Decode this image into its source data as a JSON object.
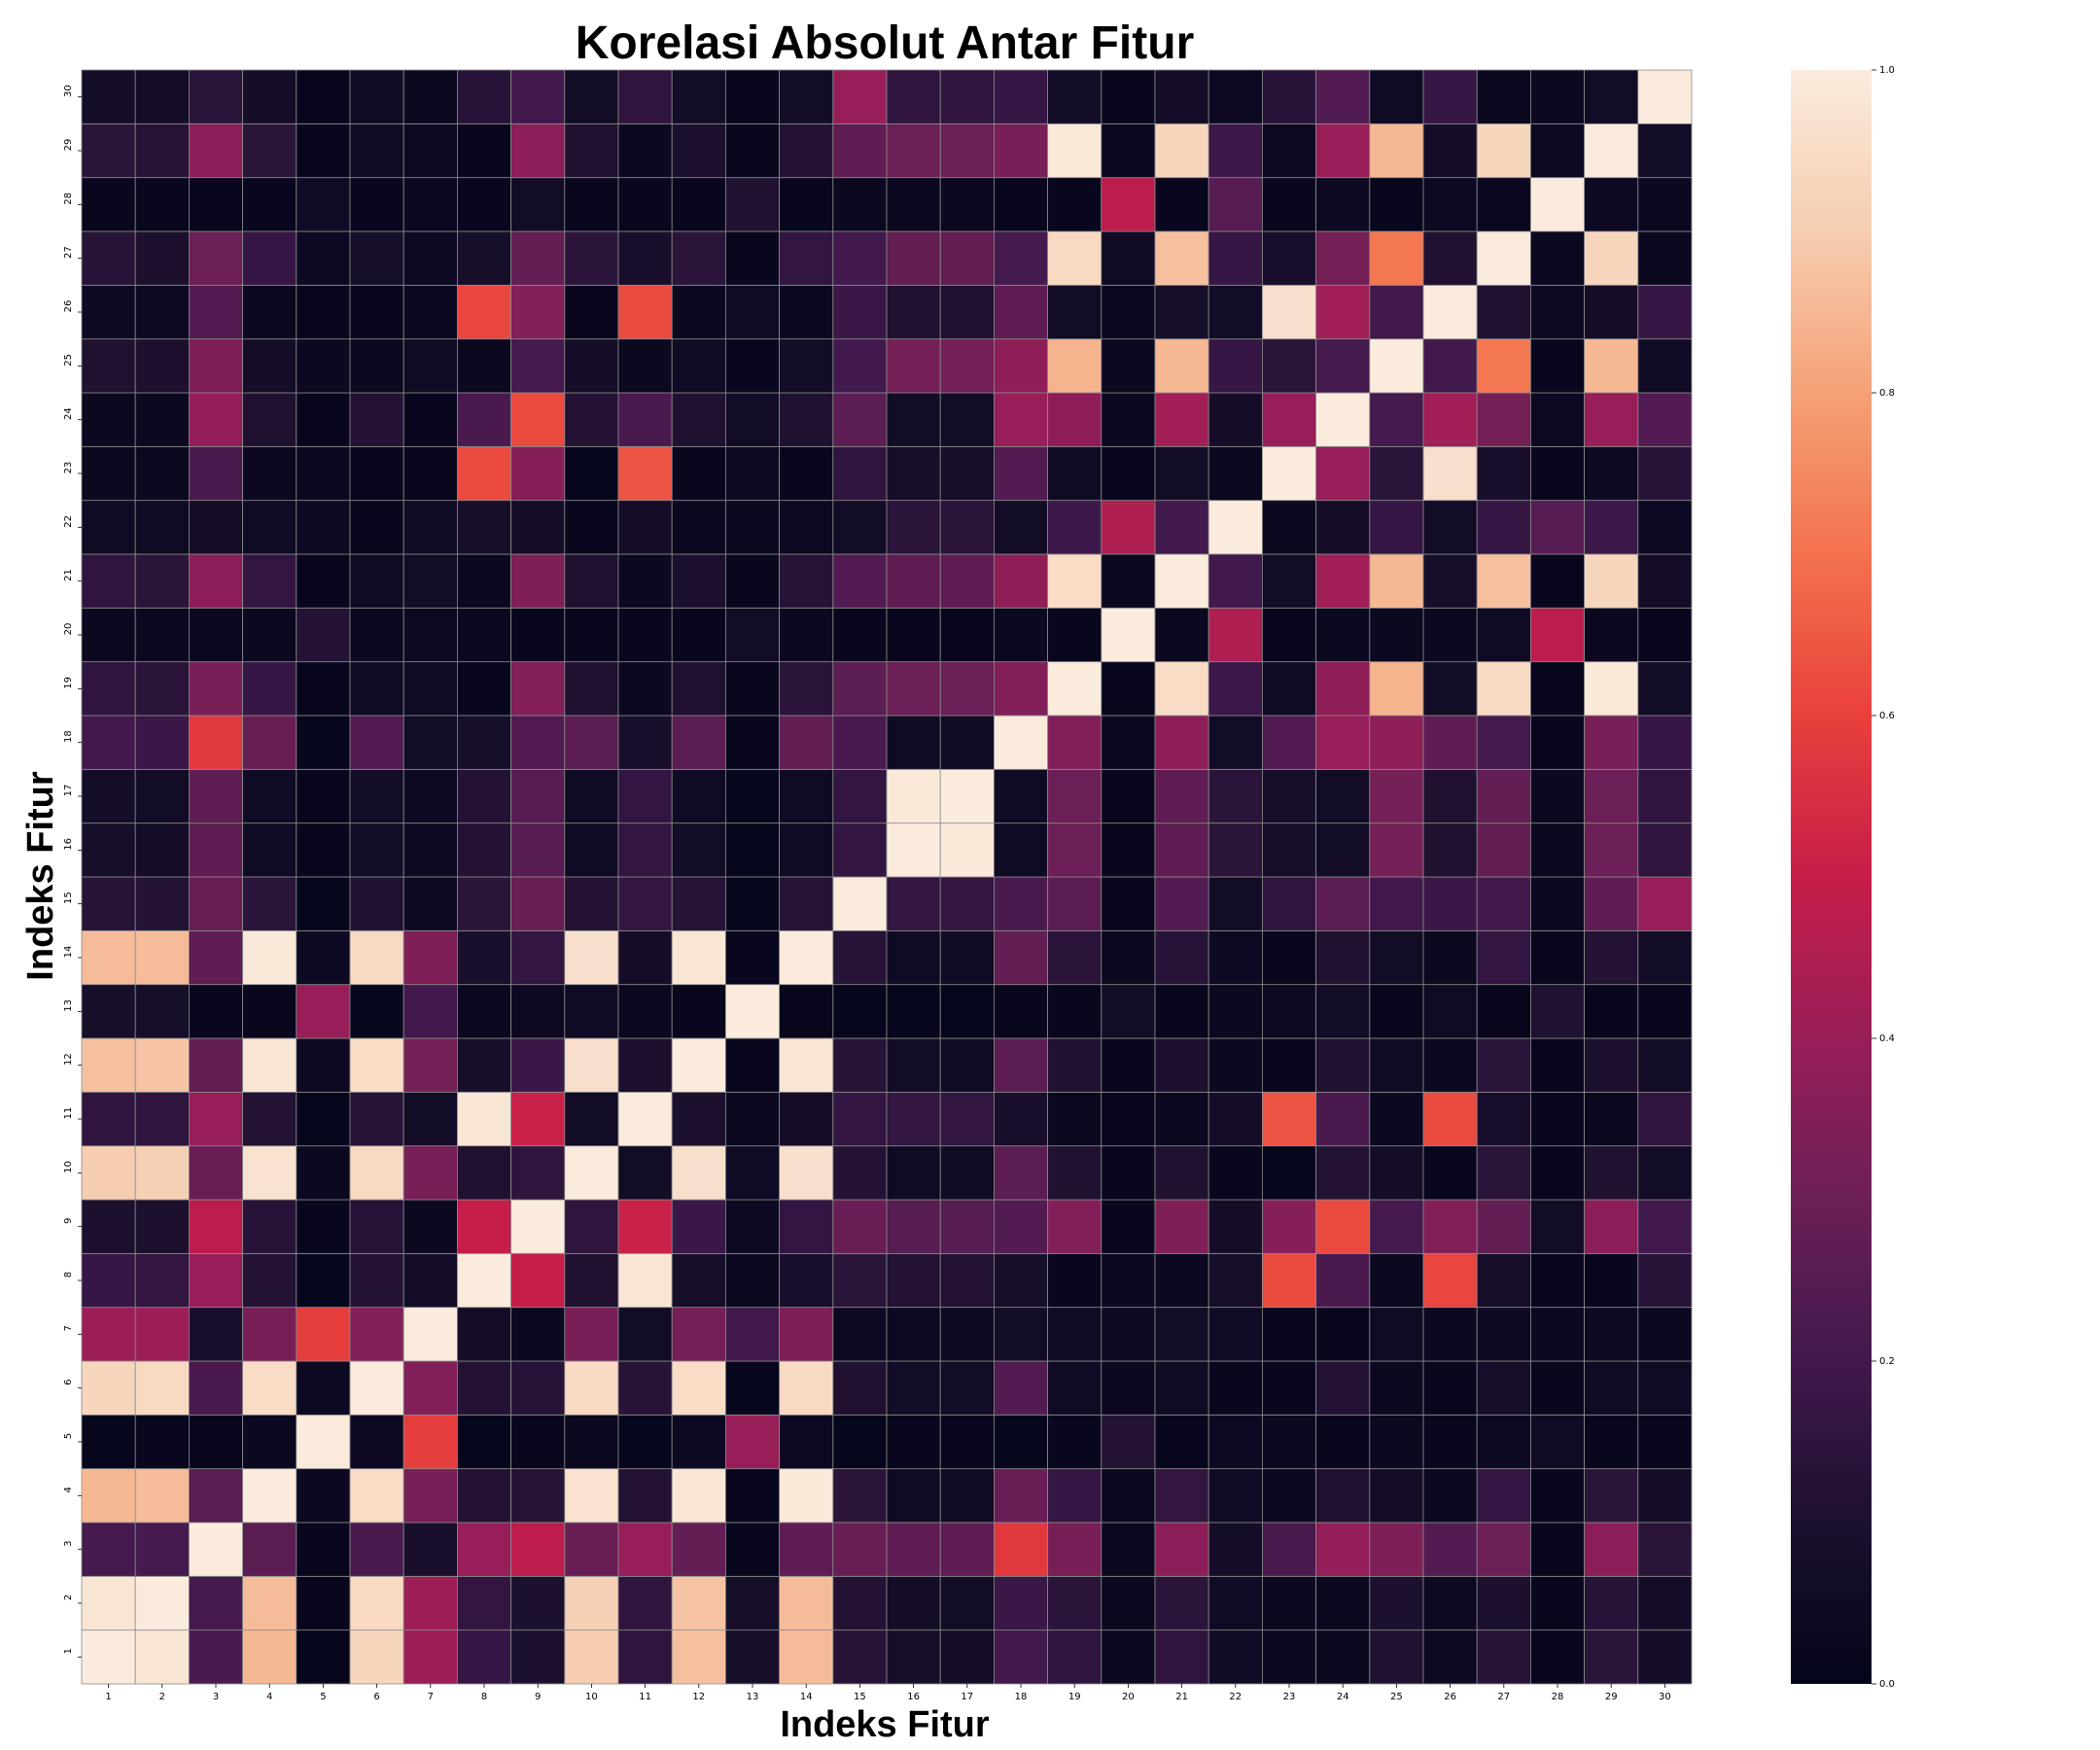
{
  "chart_data": {
    "type": "heatmap",
    "title": "Korelasi Absolut Antar Fitur",
    "xlabel": "Indeks Fitur",
    "ylabel": "Indeks Fitur",
    "x_categories": [
      "1",
      "2",
      "3",
      "4",
      "5",
      "6",
      "7",
      "8",
      "9",
      "10",
      "11",
      "12",
      "13",
      "14",
      "15",
      "16",
      "17",
      "18",
      "19",
      "20",
      "21",
      "22",
      "23",
      "24",
      "25",
      "26",
      "27",
      "28",
      "29",
      "30"
    ],
    "y_categories": [
      "1",
      "2",
      "3",
      "4",
      "5",
      "6",
      "7",
      "8",
      "9",
      "10",
      "11",
      "12",
      "13",
      "14",
      "15",
      "16",
      "17",
      "18",
      "19",
      "20",
      "21",
      "22",
      "23",
      "24",
      "25",
      "26",
      "27",
      "28",
      "29",
      "30"
    ],
    "value_range": [
      0,
      1
    ],
    "colorbar": {
      "ticks": [
        0.0,
        0.2,
        0.4,
        0.6,
        0.8,
        1.0
      ],
      "tick_labels": [
        "0.0",
        "0.2",
        "0.4",
        "0.6",
        "0.8",
        "1.0"
      ],
      "colormap": "rocket"
    },
    "matrix": [
      [
        1.0,
        0.98,
        0.22,
        0.85,
        0.01,
        0.93,
        0.41,
        0.17,
        0.1,
        0.9,
        0.15,
        0.87,
        0.08,
        0.86,
        0.13,
        0.08,
        0.07,
        0.2,
        0.15,
        0.03,
        0.15,
        0.05,
        0.03,
        0.03,
        0.11,
        0.04,
        0.13,
        0.02,
        0.14,
        0.07
      ],
      [
        0.98,
        1.0,
        0.21,
        0.86,
        0.02,
        0.94,
        0.41,
        0.16,
        0.1,
        0.91,
        0.15,
        0.88,
        0.08,
        0.86,
        0.12,
        0.07,
        0.06,
        0.18,
        0.14,
        0.03,
        0.14,
        0.05,
        0.03,
        0.03,
        0.1,
        0.04,
        0.1,
        0.02,
        0.13,
        0.07
      ],
      [
        0.21,
        0.21,
        1.0,
        0.26,
        0.02,
        0.22,
        0.09,
        0.4,
        0.48,
        0.29,
        0.4,
        0.28,
        0.02,
        0.27,
        0.29,
        0.27,
        0.27,
        0.58,
        0.33,
        0.03,
        0.37,
        0.07,
        0.22,
        0.39,
        0.34,
        0.24,
        0.3,
        0.02,
        0.37,
        0.14
      ],
      [
        0.85,
        0.86,
        0.26,
        1.0,
        0.03,
        0.95,
        0.33,
        0.12,
        0.13,
        0.97,
        0.12,
        0.98,
        0.02,
        0.99,
        0.14,
        0.05,
        0.05,
        0.29,
        0.17,
        0.03,
        0.16,
        0.05,
        0.03,
        0.11,
        0.07,
        0.03,
        0.17,
        0.02,
        0.14,
        0.07
      ],
      [
        0.01,
        0.02,
        0.02,
        0.03,
        1.0,
        0.04,
        0.59,
        0.01,
        0.02,
        0.03,
        0.01,
        0.04,
        0.4,
        0.04,
        0.01,
        0.02,
        0.02,
        0.01,
        0.02,
        0.12,
        0.02,
        0.04,
        0.03,
        0.02,
        0.03,
        0.02,
        0.04,
        0.05,
        0.02,
        0.02
      ],
      [
        0.93,
        0.94,
        0.22,
        0.95,
        0.04,
        1.0,
        0.35,
        0.12,
        0.13,
        0.94,
        0.13,
        0.95,
        0.01,
        0.94,
        0.11,
        0.06,
        0.06,
        0.24,
        0.05,
        0.03,
        0.05,
        0.02,
        0.02,
        0.12,
        0.03,
        0.02,
        0.08,
        0.02,
        0.05,
        0.05
      ],
      [
        0.41,
        0.41,
        0.09,
        0.33,
        0.59,
        0.35,
        1.0,
        0.07,
        0.03,
        0.33,
        0.06,
        0.32,
        0.2,
        0.34,
        0.04,
        0.04,
        0.04,
        0.06,
        0.05,
        0.04,
        0.06,
        0.05,
        0.02,
        0.02,
        0.05,
        0.03,
        0.04,
        0.03,
        0.04,
        0.03
      ],
      [
        0.17,
        0.16,
        0.4,
        0.12,
        0.01,
        0.12,
        0.07,
        1.0,
        0.5,
        0.11,
        0.98,
        0.08,
        0.03,
        0.09,
        0.14,
        0.12,
        0.12,
        0.08,
        0.02,
        0.03,
        0.03,
        0.08,
        0.62,
        0.22,
        0.03,
        0.61,
        0.08,
        0.02,
        0.02,
        0.13
      ],
      [
        0.1,
        0.1,
        0.48,
        0.13,
        0.02,
        0.13,
        0.03,
        0.5,
        1.0,
        0.15,
        0.51,
        0.18,
        0.04,
        0.16,
        0.29,
        0.25,
        0.25,
        0.24,
        0.35,
        0.02,
        0.34,
        0.07,
        0.36,
        0.62,
        0.21,
        0.35,
        0.28,
        0.06,
        0.37,
        0.2
      ],
      [
        0.9,
        0.91,
        0.29,
        0.97,
        0.03,
        0.94,
        0.33,
        0.11,
        0.15,
        1.0,
        0.06,
        0.96,
        0.05,
        0.96,
        0.12,
        0.05,
        0.05,
        0.26,
        0.11,
        0.02,
        0.11,
        0.02,
        0.01,
        0.12,
        0.07,
        0.02,
        0.14,
        0.02,
        0.11,
        0.06
      ],
      [
        0.15,
        0.15,
        0.4,
        0.12,
        0.01,
        0.13,
        0.06,
        0.98,
        0.51,
        0.06,
        1.0,
        0.1,
        0.03,
        0.07,
        0.16,
        0.16,
        0.16,
        0.09,
        0.03,
        0.02,
        0.03,
        0.07,
        0.64,
        0.22,
        0.03,
        0.62,
        0.09,
        0.02,
        0.03,
        0.15
      ],
      [
        0.87,
        0.88,
        0.28,
        0.98,
        0.04,
        0.95,
        0.32,
        0.08,
        0.18,
        0.96,
        0.1,
        1.0,
        0.02,
        0.98,
        0.13,
        0.06,
        0.05,
        0.26,
        0.11,
        0.02,
        0.1,
        0.03,
        0.02,
        0.11,
        0.05,
        0.03,
        0.14,
        0.02,
        0.1,
        0.06
      ],
      [
        0.08,
        0.08,
        0.02,
        0.02,
        0.4,
        0.01,
        0.2,
        0.03,
        0.04,
        0.05,
        0.03,
        0.02,
        1.0,
        0.02,
        0.01,
        0.01,
        0.01,
        0.02,
        0.02,
        0.06,
        0.02,
        0.03,
        0.04,
        0.06,
        0.02,
        0.05,
        0.02,
        0.11,
        0.02,
        0.02
      ],
      [
        0.86,
        0.86,
        0.27,
        0.99,
        0.04,
        0.94,
        0.34,
        0.09,
        0.16,
        0.96,
        0.07,
        0.98,
        0.02,
        1.0,
        0.13,
        0.05,
        0.05,
        0.28,
        0.14,
        0.03,
        0.13,
        0.04,
        0.02,
        0.11,
        0.06,
        0.03,
        0.16,
        0.02,
        0.12,
        0.06
      ],
      [
        0.13,
        0.12,
        0.29,
        0.14,
        0.01,
        0.11,
        0.04,
        0.14,
        0.29,
        0.12,
        0.16,
        0.13,
        0.01,
        0.13,
        1.0,
        0.16,
        0.16,
        0.22,
        0.26,
        0.02,
        0.24,
        0.06,
        0.15,
        0.26,
        0.2,
        0.18,
        0.2,
        0.03,
        0.27,
        0.4
      ],
      [
        0.08,
        0.07,
        0.27,
        0.05,
        0.02,
        0.06,
        0.04,
        0.12,
        0.25,
        0.05,
        0.16,
        0.06,
        0.01,
        0.05,
        0.16,
        1.0,
        0.99,
        0.05,
        0.3,
        0.02,
        0.27,
        0.14,
        0.08,
        0.06,
        0.32,
        0.11,
        0.28,
        0.03,
        0.3,
        0.15
      ],
      [
        0.07,
        0.06,
        0.27,
        0.05,
        0.02,
        0.06,
        0.04,
        0.12,
        0.25,
        0.05,
        0.16,
        0.05,
        0.01,
        0.05,
        0.16,
        0.99,
        1.0,
        0.05,
        0.3,
        0.02,
        0.27,
        0.14,
        0.08,
        0.06,
        0.32,
        0.11,
        0.28,
        0.03,
        0.3,
        0.15
      ],
      [
        0.2,
        0.18,
        0.58,
        0.29,
        0.01,
        0.24,
        0.06,
        0.08,
        0.24,
        0.26,
        0.09,
        0.26,
        0.02,
        0.28,
        0.22,
        0.05,
        0.05,
        1.0,
        0.35,
        0.03,
        0.38,
        0.06,
        0.24,
        0.4,
        0.38,
        0.27,
        0.21,
        0.02,
        0.33,
        0.17
      ],
      [
        0.15,
        0.14,
        0.33,
        0.17,
        0.02,
        0.05,
        0.05,
        0.02,
        0.35,
        0.11,
        0.03,
        0.11,
        0.02,
        0.14,
        0.26,
        0.3,
        0.3,
        0.35,
        1.0,
        0.02,
        0.95,
        0.19,
        0.05,
        0.38,
        0.84,
        0.06,
        0.94,
        0.02,
        0.99,
        0.06
      ],
      [
        0.03,
        0.03,
        0.03,
        0.03,
        0.12,
        0.03,
        0.04,
        0.03,
        0.02,
        0.02,
        0.02,
        0.02,
        0.06,
        0.03,
        0.02,
        0.02,
        0.02,
        0.03,
        0.02,
        1.0,
        0.03,
        0.45,
        0.02,
        0.03,
        0.03,
        0.03,
        0.05,
        0.48,
        0.03,
        0.02
      ],
      [
        0.15,
        0.14,
        0.37,
        0.16,
        0.02,
        0.05,
        0.06,
        0.03,
        0.34,
        0.11,
        0.03,
        0.1,
        0.02,
        0.13,
        0.24,
        0.27,
        0.27,
        0.38,
        0.95,
        0.03,
        1.0,
        0.2,
        0.06,
        0.42,
        0.85,
        0.08,
        0.87,
        0.02,
        0.93,
        0.07
      ],
      [
        0.05,
        0.05,
        0.07,
        0.05,
        0.04,
        0.02,
        0.05,
        0.08,
        0.07,
        0.02,
        0.07,
        0.03,
        0.03,
        0.04,
        0.06,
        0.14,
        0.14,
        0.06,
        0.19,
        0.45,
        0.2,
        1.0,
        0.03,
        0.07,
        0.17,
        0.06,
        0.17,
        0.25,
        0.19,
        0.04
      ],
      [
        0.03,
        0.03,
        0.22,
        0.03,
        0.03,
        0.02,
        0.02,
        0.62,
        0.36,
        0.01,
        0.64,
        0.02,
        0.04,
        0.02,
        0.15,
        0.08,
        0.08,
        0.24,
        0.05,
        0.02,
        0.06,
        0.03,
        1.0,
        0.4,
        0.14,
        0.96,
        0.09,
        0.02,
        0.04,
        0.13
      ],
      [
        0.03,
        0.03,
        0.39,
        0.11,
        0.02,
        0.12,
        0.02,
        0.22,
        0.62,
        0.12,
        0.22,
        0.11,
        0.06,
        0.11,
        0.26,
        0.06,
        0.06,
        0.4,
        0.38,
        0.03,
        0.42,
        0.07,
        0.4,
        1.0,
        0.21,
        0.42,
        0.32,
        0.04,
        0.4,
        0.24
      ],
      [
        0.11,
        0.1,
        0.34,
        0.07,
        0.03,
        0.03,
        0.05,
        0.03,
        0.21,
        0.07,
        0.03,
        0.05,
        0.02,
        0.06,
        0.2,
        0.32,
        0.32,
        0.38,
        0.84,
        0.03,
        0.85,
        0.17,
        0.14,
        0.21,
        1.0,
        0.2,
        0.71,
        0.02,
        0.85,
        0.05
      ],
      [
        0.04,
        0.04,
        0.24,
        0.03,
        0.02,
        0.02,
        0.03,
        0.61,
        0.35,
        0.02,
        0.62,
        0.03,
        0.05,
        0.03,
        0.18,
        0.11,
        0.11,
        0.27,
        0.06,
        0.03,
        0.08,
        0.06,
        0.96,
        0.42,
        0.2,
        1.0,
        0.11,
        0.04,
        0.07,
        0.17
      ],
      [
        0.13,
        0.1,
        0.3,
        0.17,
        0.04,
        0.08,
        0.04,
        0.08,
        0.28,
        0.14,
        0.09,
        0.14,
        0.02,
        0.16,
        0.2,
        0.28,
        0.28,
        0.21,
        0.94,
        0.05,
        0.87,
        0.17,
        0.09,
        0.32,
        0.71,
        0.11,
        1.0,
        0.03,
        0.93,
        0.03
      ],
      [
        0.02,
        0.02,
        0.02,
        0.02,
        0.05,
        0.02,
        0.03,
        0.02,
        0.06,
        0.02,
        0.02,
        0.02,
        0.11,
        0.02,
        0.03,
        0.03,
        0.03,
        0.02,
        0.02,
        0.48,
        0.02,
        0.25,
        0.02,
        0.04,
        0.02,
        0.04,
        0.03,
        1.0,
        0.04,
        0.03
      ],
      [
        0.14,
        0.13,
        0.37,
        0.14,
        0.02,
        0.05,
        0.04,
        0.02,
        0.37,
        0.11,
        0.03,
        0.1,
        0.02,
        0.12,
        0.27,
        0.3,
        0.3,
        0.33,
        0.99,
        0.03,
        0.93,
        0.19,
        0.04,
        0.4,
        0.85,
        0.07,
        0.93,
        0.04,
        1.0,
        0.06
      ],
      [
        0.07,
        0.07,
        0.14,
        0.07,
        0.02,
        0.05,
        0.03,
        0.13,
        0.2,
        0.06,
        0.15,
        0.06,
        0.02,
        0.06,
        0.4,
        0.15,
        0.15,
        0.17,
        0.06,
        0.02,
        0.07,
        0.04,
        0.13,
        0.24,
        0.05,
        0.17,
        0.03,
        0.03,
        0.06,
        1.0
      ]
    ]
  }
}
